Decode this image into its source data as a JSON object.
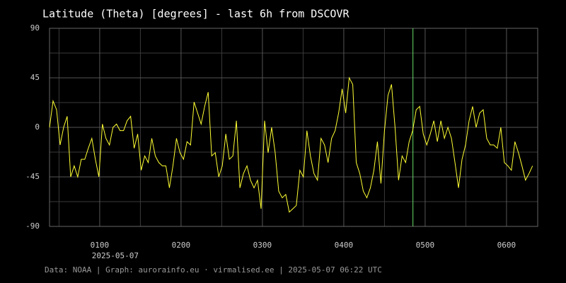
{
  "chart_data": {
    "type": "line",
    "title": "Latitude (Theta) [degrees] - last 6h from DSCOVR",
    "date_label": "2025-05-07",
    "footer": "Data: NOAA | Graph: aurorainfo.eu · virmalised.ee | 2025-05-07 06:22 UTC",
    "xlim": [
      23,
      383
    ],
    "xticks": [
      {
        "value": 60,
        "label": "0100"
      },
      {
        "value": 120,
        "label": "0200"
      },
      {
        "value": 180,
        "label": "0300"
      },
      {
        "value": 240,
        "label": "0400"
      },
      {
        "value": 300,
        "label": "0500"
      },
      {
        "value": 360,
        "label": "0600"
      }
    ],
    "xminor": [
      30,
      90,
      150,
      210,
      270,
      330
    ],
    "ylim": [
      -90,
      90
    ],
    "yticks": [
      90,
      45,
      0,
      -45,
      -90
    ],
    "yminor": [
      67.5,
      22.5,
      -22.5,
      -67.5
    ],
    "grid": true,
    "vline": {
      "x": 291,
      "color": "#66dd66"
    },
    "x": [
      23,
      25.6,
      28.2,
      30.8,
      33.4,
      36,
      38.6,
      41.2,
      43.8,
      46.4,
      49,
      51.6,
      54.2,
      56.8,
      59.4,
      62,
      64.6,
      67.2,
      69.8,
      72.4,
      75,
      77.6,
      80.2,
      82.8,
      85.4,
      88,
      90.6,
      93.2,
      95.8,
      98.4,
      101,
      103.6,
      106.2,
      108.8,
      111.4,
      114,
      116.6,
      119.2,
      121.8,
      124.4,
      127,
      129.6,
      132.2,
      134.8,
      137.4,
      140,
      142.6,
      145.2,
      147.8,
      150.4,
      153,
      155.6,
      158.2,
      160.8,
      163.4,
      166,
      168.6,
      171.2,
      173.8,
      176.4,
      179,
      181.6,
      184.2,
      186.8,
      189.4,
      192,
      194.6,
      197.2,
      199.8,
      202.4,
      205,
      207.6,
      210.2,
      212.8,
      215.4,
      218,
      220.6,
      223.2,
      225.8,
      228.4,
      231,
      233.6,
      236.2,
      238.8,
      241.4,
      244,
      246.6,
      249.2,
      251.8,
      254.4,
      257,
      259.6,
      262.2,
      264.8,
      267.4,
      270,
      272.6,
      275.2,
      277.8,
      280.4,
      283,
      285.6,
      288.2,
      290.8,
      293.4,
      296,
      298.6,
      301.2,
      303.8,
      306.4,
      309,
      311.6,
      314.2,
      316.8,
      319.4,
      322,
      324.6,
      327.2,
      329.8,
      332.4,
      335,
      337.6,
      340.2,
      342.8,
      345.4,
      348,
      350.6,
      353.2,
      355.8,
      358.4,
      361,
      363.6,
      366.2,
      368.8,
      371.4,
      374,
      376.6,
      379.2
    ],
    "series": [
      {
        "name": "Latitude",
        "color": "#ffff33",
        "values": [
          0,
          24,
          16,
          -16,
          0,
          10,
          -45,
          -35,
          -45,
          -29,
          -29,
          -19,
          -10,
          -29,
          -45,
          3,
          -10,
          -16,
          0,
          3,
          -3,
          -3,
          6,
          10,
          -19,
          -6,
          -39,
          -26,
          -32,
          -10,
          -26,
          -32,
          -35,
          -35,
          -55,
          -35,
          -10,
          -23,
          -29,
          -13,
          -16,
          23,
          13,
          3,
          19,
          32,
          -26,
          -23,
          -45,
          -35,
          -6,
          -29,
          -26,
          6,
          -55,
          -42,
          -35,
          -48,
          -55,
          -48,
          -74,
          6,
          -23,
          0,
          -23,
          -58,
          -64,
          -61,
          -77,
          -74,
          -71,
          -39,
          -45,
          -3,
          -26,
          -42,
          -48,
          -10,
          -16,
          -32,
          -10,
          -3,
          13,
          35,
          13,
          45,
          39,
          -32,
          -42,
          -58,
          -64,
          -55,
          -39,
          -13,
          -51,
          -3,
          29,
          39,
          0,
          -48,
          -26,
          -32,
          -13,
          -3,
          16,
          19,
          -6,
          -16,
          -6,
          6,
          -13,
          6,
          -10,
          0,
          -10,
          -32,
          -55,
          -29,
          -16,
          6,
          19,
          0,
          13,
          16,
          -10,
          -16,
          -16,
          -19,
          0,
          -32,
          -35,
          -39,
          -13,
          -23,
          -35,
          -48,
          -42,
          -35
        ]
      }
    ]
  }
}
